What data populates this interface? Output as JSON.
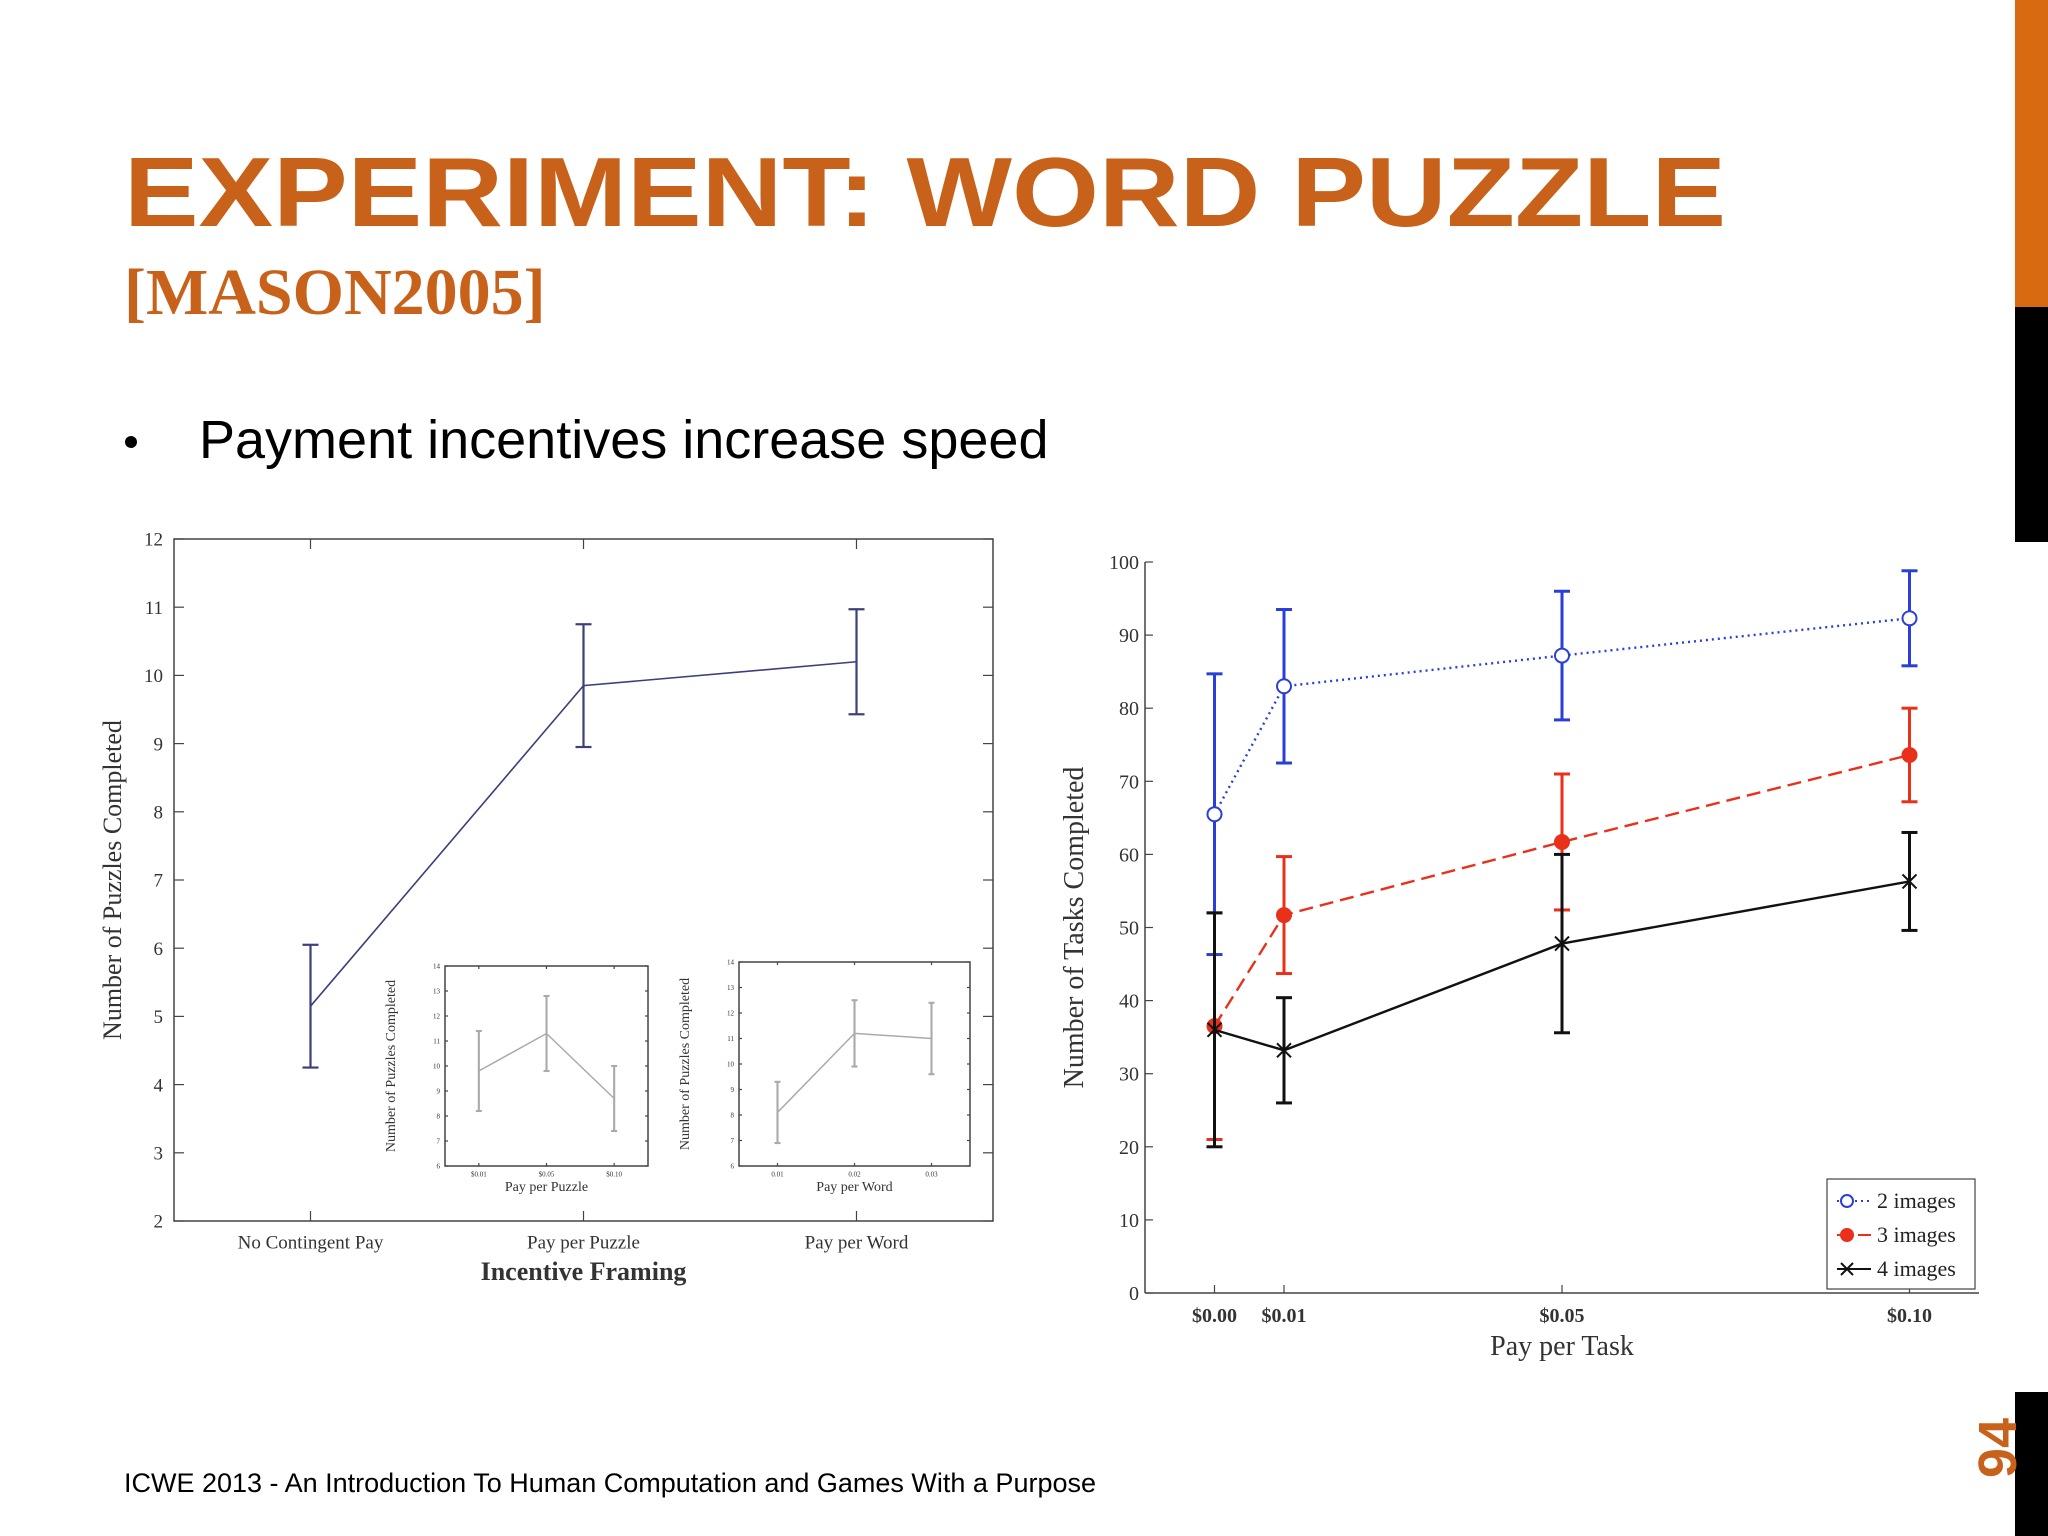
{
  "title": "EXPERIMENT: WORD PUZZLE",
  "subtitle": "[MASON2005]",
  "bullets": [
    "Payment incentives increase speed"
  ],
  "footer": "ICWE 2013 - An Introduction To Human Computation and Games With a Purpose",
  "page_number": 94,
  "chart_data": [
    {
      "type": "line",
      "box": true,
      "categories": [
        "No Contingent Pay",
        "Pay per Puzzle",
        "Pay per Word"
      ],
      "values": [
        5.15,
        9.85,
        10.2
      ],
      "errors": [
        0.9,
        0.9,
        0.77
      ],
      "color": "#3b3f7a",
      "ylim": [
        2,
        12
      ],
      "yticks": [
        2,
        3,
        4,
        5,
        6,
        7,
        8,
        9,
        10,
        11,
        12
      ],
      "xlabel": "Incentive Framing",
      "ylabel": "Number of Puzzles Completed"
    },
    {
      "type": "line",
      "box": false,
      "x": [
        0,
        0.01,
        0.05,
        0.1
      ],
      "xlim": [
        -0.01,
        0.11
      ],
      "xticks": [
        {
          "value": 0,
          "label": "$0.00"
        },
        {
          "value": 0.01,
          "label": "$0.01"
        },
        {
          "value": 0.05,
          "label": "$0.05"
        },
        {
          "value": 0.1,
          "label": "$0.10"
        }
      ],
      "ylim": [
        0,
        100
      ],
      "yticks": [
        0,
        10,
        20,
        30,
        40,
        50,
        60,
        70,
        80,
        90,
        100
      ],
      "xlabel": "Pay per Task",
      "ylabel": "Number of Tasks Completed",
      "legend": "lower right",
      "series": [
        {
          "name": "2 images",
          "color": "#2a3fd8",
          "linestyle": "dotted",
          "marker": "circle-open",
          "values": [
            65.5,
            83,
            87.2,
            92.3
          ],
          "errors": [
            19.2,
            10.5,
            8.8,
            6.5
          ]
        },
        {
          "name": "3 images",
          "color": "#e8301a",
          "linestyle": "dashed",
          "marker": "circle-filled",
          "values": [
            36.5,
            51.7,
            61.7,
            73.6
          ],
          "errors": [
            15.5,
            8,
            9.3,
            6.4
          ]
        },
        {
          "name": "4 images",
          "color": "#111111",
          "linestyle": "solid",
          "marker": "x",
          "values": [
            36,
            33.2,
            47.8,
            56.3
          ],
          "errors": [
            16,
            7.2,
            12.2,
            6.7
          ]
        }
      ]
    },
    {
      "type": "line",
      "box": true,
      "categories": [
        "$0.01",
        "$0.05",
        "$0.10"
      ],
      "values": [
        9.8,
        11.3,
        8.7
      ],
      "errors": [
        1.6,
        1.5,
        1.3
      ],
      "color": "#aaaaaa",
      "ylim": [
        6,
        14
      ],
      "yticks": [
        6,
        7,
        8,
        9,
        10,
        11,
        12,
        13,
        14
      ],
      "xlabel": "Pay per Puzzle",
      "ylabel": "Number of Puzzles Completed"
    },
    {
      "type": "line",
      "box": true,
      "categories": [
        "0.01",
        "0.02",
        "0.03"
      ],
      "values": [
        8.1,
        11.2,
        11.0
      ],
      "errors": [
        1.2,
        1.3,
        1.4
      ],
      "color": "#aaaaaa",
      "ylim": [
        6,
        14
      ],
      "yticks": [
        6,
        7,
        8,
        9,
        10,
        11,
        12,
        13,
        14
      ],
      "xlabel": "Pay per Word",
      "ylabel": "Number of Puzzles Completed"
    }
  ]
}
